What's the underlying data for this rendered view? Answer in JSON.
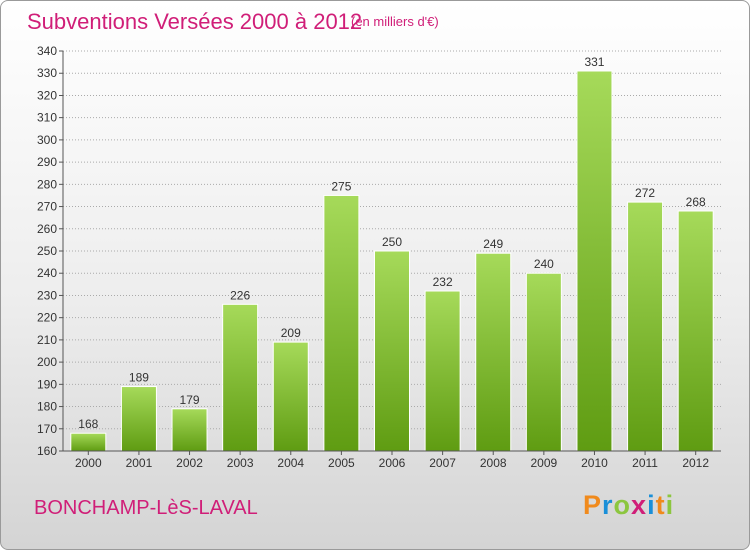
{
  "header": {
    "title": "Subventions Versées 2000 à 2012",
    "subtitle": "(en milliers d'€)"
  },
  "footer": {
    "city": "BONCHAMP-LèS-LAVAL",
    "logo_text": "Proxiti",
    "logo_colors": [
      "#f08a1c",
      "#1a8fd8",
      "#8cc63f",
      "#d01e78",
      "#1a8fd8",
      "#f08a1c",
      "#8cc63f"
    ]
  },
  "colors": {
    "bar_top": "#a6da5a",
    "bar_bottom": "#5f9c12",
    "accent": "#d01e78",
    "grid": "#aaaaaa"
  },
  "chart_data": {
    "type": "bar",
    "title": "Subventions Versées 2000 à 2012",
    "subtitle": "(en milliers d'€)",
    "categories": [
      "2000",
      "2001",
      "2002",
      "2003",
      "2004",
      "2005",
      "2006",
      "2007",
      "2008",
      "2009",
      "2010",
      "2011",
      "2012"
    ],
    "values": [
      168,
      189,
      179,
      226,
      209,
      275,
      250,
      232,
      249,
      240,
      331,
      272,
      268
    ],
    "ylim": [
      160,
      340
    ],
    "yticks": [
      160,
      170,
      180,
      190,
      200,
      210,
      220,
      230,
      240,
      250,
      260,
      270,
      280,
      290,
      300,
      310,
      320,
      330,
      340
    ],
    "grid": true,
    "data_labels": true
  }
}
